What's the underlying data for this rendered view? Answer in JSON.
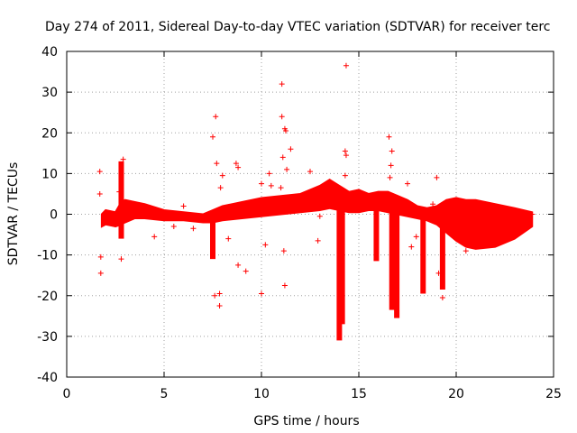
{
  "chart_data": {
    "type": "scatter",
    "title": "Day 274 of 2011, Sidereal Day-to-day VTEC variation (SDTVAR) for receiver terc",
    "xlabel": "GPS time / hours",
    "ylabel": "SDTVAR / TECUs",
    "xlim": [
      0,
      25
    ],
    "ylim": [
      -40,
      40
    ],
    "xticks": [
      "0",
      "5",
      "10",
      "15",
      "20",
      "25"
    ],
    "yticks": [
      "-40",
      "-30",
      "-20",
      "-10",
      "0",
      "10",
      "20",
      "30",
      "40"
    ],
    "grid": true,
    "marker": "+",
    "color": "#ff0000",
    "dense_band": {
      "x": [
        1.8,
        2.0,
        2.5,
        2.8,
        3.0,
        3.5,
        4.0,
        5.0,
        6.0,
        7.0,
        7.5,
        8.0,
        9.0,
        10.0,
        11.0,
        12.0,
        13.0,
        13.5,
        14.0,
        14.5,
        15.0,
        15.5,
        16.0,
        16.5,
        17.0,
        17.5,
        18.0,
        18.5,
        19.0,
        19.5,
        20.0,
        20.5,
        21.0,
        22.0,
        23.0,
        23.9
      ],
      "upper": [
        0.0,
        1.0,
        0.5,
        3.0,
        3.5,
        3.0,
        2.5,
        1.0,
        0.5,
        0.0,
        1.0,
        2.0,
        3.0,
        4.0,
        4.5,
        5.0,
        7.0,
        8.5,
        7.0,
        5.5,
        6.0,
        5.0,
        5.5,
        5.5,
        4.5,
        3.5,
        2.0,
        1.5,
        2.0,
        3.5,
        4.0,
        3.5,
        3.5,
        2.5,
        1.5,
        0.5
      ],
      "lower": [
        -3.0,
        -2.5,
        -3.0,
        -2.5,
        -2.0,
        -1.0,
        -1.0,
        -1.5,
        -1.5,
        -2.0,
        -2.0,
        -1.5,
        -1.0,
        -0.5,
        0.0,
        0.5,
        1.0,
        1.5,
        1.0,
        0.5,
        0.5,
        1.0,
        1.0,
        0.5,
        0.0,
        -0.5,
        -1.0,
        -1.5,
        -2.5,
        -4.5,
        -6.5,
        -8.0,
        -8.5,
        -8.0,
        -6.0,
        -3.0
      ]
    },
    "spikes": [
      {
        "x": 7.5,
        "top": -1.0,
        "bottom": -11.0
      },
      {
        "x": 14.0,
        "top": 2.0,
        "bottom": -31.0
      },
      {
        "x": 14.15,
        "top": 3.0,
        "bottom": -27.0
      },
      {
        "x": 15.9,
        "top": 2.0,
        "bottom": -11.5
      },
      {
        "x": 16.7,
        "top": 3.0,
        "bottom": -23.5
      },
      {
        "x": 16.95,
        "top": 3.0,
        "bottom": -25.5
      },
      {
        "x": 18.3,
        "top": 1.0,
        "bottom": -19.5
      },
      {
        "x": 19.3,
        "top": 0.5,
        "bottom": -18.5
      },
      {
        "x": 2.8,
        "top": 13.0,
        "bottom": -6.0
      }
    ],
    "outliers": [
      {
        "x": 1.7,
        "y": 10.5
      },
      {
        "x": 1.7,
        "y": 5.0
      },
      {
        "x": 1.75,
        "y": -10.5
      },
      {
        "x": 1.75,
        "y": -14.5
      },
      {
        "x": 2.7,
        "y": 5.5
      },
      {
        "x": 2.8,
        "y": -11.0
      },
      {
        "x": 2.9,
        "y": 13.5
      },
      {
        "x": 4.5,
        "y": -5.5
      },
      {
        "x": 5.5,
        "y": -3.0
      },
      {
        "x": 6.0,
        "y": 2.0
      },
      {
        "x": 6.5,
        "y": -3.5
      },
      {
        "x": 7.5,
        "y": 19.0
      },
      {
        "x": 7.65,
        "y": 24.0
      },
      {
        "x": 7.7,
        "y": 12.5
      },
      {
        "x": 7.6,
        "y": -20.0
      },
      {
        "x": 7.85,
        "y": -19.5
      },
      {
        "x": 7.85,
        "y": -22.5
      },
      {
        "x": 8.0,
        "y": 9.5
      },
      {
        "x": 7.9,
        "y": 6.5
      },
      {
        "x": 8.3,
        "y": -6.0
      },
      {
        "x": 8.7,
        "y": 12.5
      },
      {
        "x": 8.8,
        "y": 11.5
      },
      {
        "x": 8.8,
        "y": -12.5
      },
      {
        "x": 9.2,
        "y": -14.0
      },
      {
        "x": 10.0,
        "y": -19.5
      },
      {
        "x": 10.0,
        "y": 7.5
      },
      {
        "x": 10.2,
        "y": -7.5
      },
      {
        "x": 10.4,
        "y": 10.0
      },
      {
        "x": 10.5,
        "y": 7.0
      },
      {
        "x": 11.05,
        "y": 32.0
      },
      {
        "x": 11.05,
        "y": 24.0
      },
      {
        "x": 11.2,
        "y": 21.0
      },
      {
        "x": 11.25,
        "y": 20.5
      },
      {
        "x": 11.1,
        "y": 14.0
      },
      {
        "x": 11.3,
        "y": 11.0
      },
      {
        "x": 11.15,
        "y": -9.0
      },
      {
        "x": 11.2,
        "y": -17.5
      },
      {
        "x": 11.5,
        "y": 16.0
      },
      {
        "x": 11.0,
        "y": 6.5
      },
      {
        "x": 12.5,
        "y": 10.5
      },
      {
        "x": 12.9,
        "y": -6.5
      },
      {
        "x": 13.0,
        "y": -0.5
      },
      {
        "x": 14.35,
        "y": 36.5
      },
      {
        "x": 14.3,
        "y": 15.5
      },
      {
        "x": 14.35,
        "y": 14.5
      },
      {
        "x": 14.3,
        "y": 9.5
      },
      {
        "x": 16.55,
        "y": 19.0
      },
      {
        "x": 16.7,
        "y": 15.5
      },
      {
        "x": 16.65,
        "y": 12.0
      },
      {
        "x": 16.6,
        "y": 9.0
      },
      {
        "x": 17.5,
        "y": 7.5
      },
      {
        "x": 17.7,
        "y": -8.0
      },
      {
        "x": 17.95,
        "y": -5.5
      },
      {
        "x": 18.8,
        "y": 2.5
      },
      {
        "x": 19.0,
        "y": 9.0
      },
      {
        "x": 19.3,
        "y": -20.5
      },
      {
        "x": 19.1,
        "y": -14.5
      },
      {
        "x": 20.5,
        "y": -9.0
      },
      {
        "x": 22.0,
        "y": -6.0
      },
      {
        "x": 23.5,
        "y": -2.0
      },
      {
        "x": 23.9,
        "y": 0.0
      }
    ]
  }
}
